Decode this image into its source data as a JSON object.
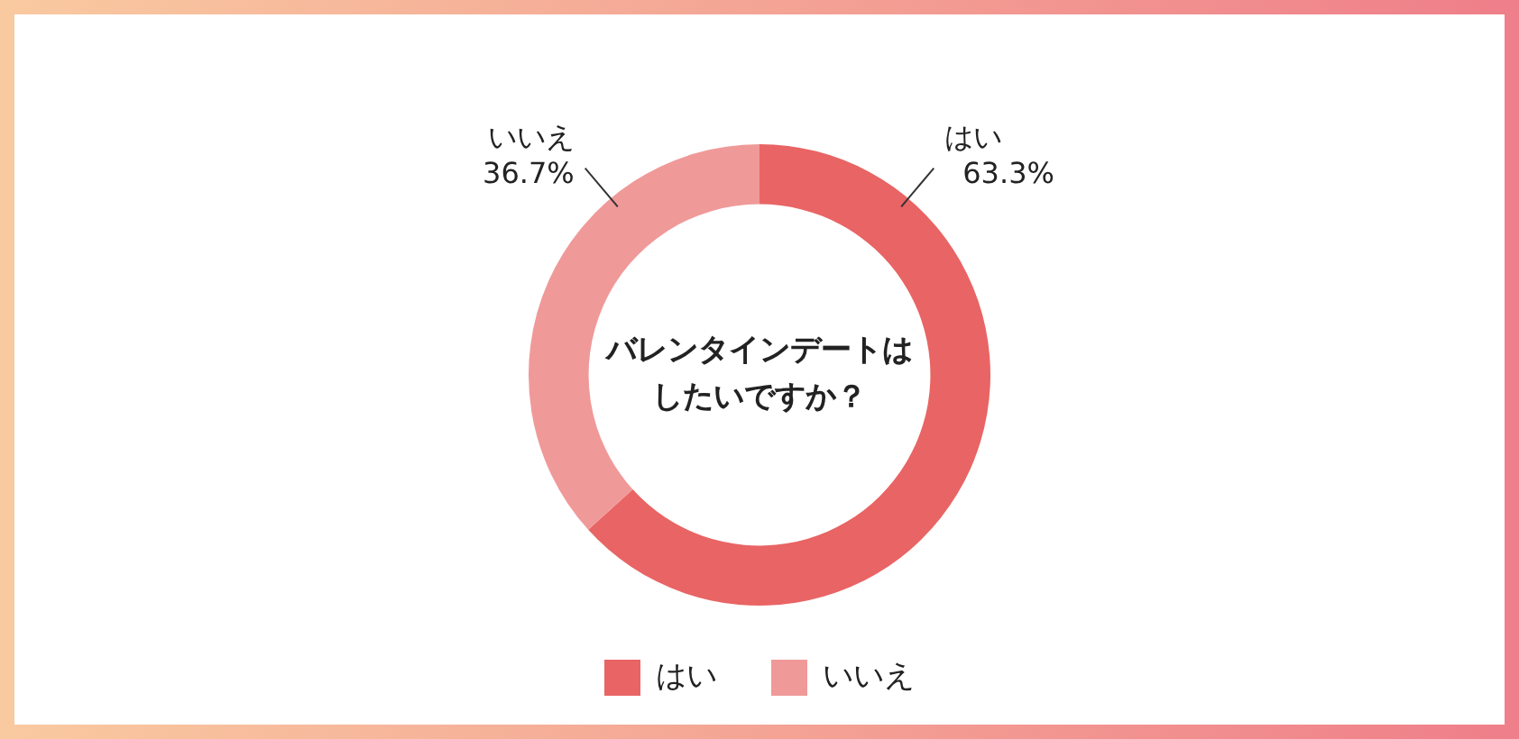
{
  "chart_data": {
    "type": "donut",
    "title": "バレンタインデートはしたいですか？",
    "categories": [
      "はい",
      "いいえ"
    ],
    "values": [
      63.3,
      36.7
    ],
    "value_labels": [
      "63.3%",
      "36.7%"
    ],
    "colors": [
      "#e96464",
      "#f09999"
    ],
    "legend": "bottom"
  }
}
